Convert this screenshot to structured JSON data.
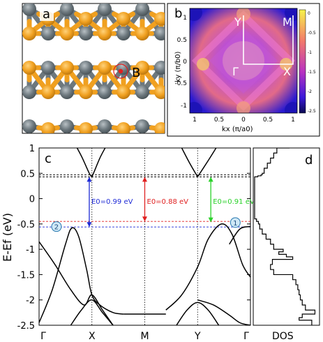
{
  "panels": {
    "a": {
      "label": "a",
      "site_label": "B"
    },
    "b": {
      "label": "b",
      "xlabel": "kx (π/a0)",
      "ylabel": "ky (π/b0)",
      "x_ticks": [
        "1",
        "0.5",
        "0",
        "0.5",
        "1"
      ],
      "y_ticks": [
        "1",
        "0.5",
        "0",
        "-0.5",
        "-1"
      ],
      "colorbar_ticks": [
        "0",
        "-0.5",
        "-1",
        "-1.5",
        "-2",
        "-2.5"
      ],
      "points": {
        "Y": "Y",
        "M": "M",
        "G": "Γ",
        "X": "X"
      }
    },
    "c": {
      "label": "c"
    },
    "d": {
      "label": "d",
      "xlabel": "DOS"
    }
  },
  "chart_data": {
    "type": "line",
    "title": "",
    "ylabel": "E-Ef (eV)",
    "ylim": [
      -2.5,
      1
    ],
    "y_ticks": [
      "1",
      "0.5",
      "0",
      "-0.5",
      "-1",
      "-1.5",
      "-2",
      "-2.5"
    ],
    "k_path": [
      "Γ",
      "X",
      "M",
      "Y",
      "Γ"
    ],
    "k_positions": [
      0,
      1,
      2,
      3,
      4
    ],
    "gap_annotations": [
      {
        "text": "E0=0.99 eV",
        "color": "#1f2bd6",
        "k": 0.95,
        "from": -0.56,
        "to": 0.43
      },
      {
        "text": "E0=0.88 eV",
        "color": "#e02020",
        "k": 2.0,
        "from": -0.45,
        "to": 0.43
      },
      {
        "text": "E0=0.91 eV",
        "color": "#2ad12a",
        "k": 3.25,
        "from": -0.47,
        "to": 0.43
      }
    ],
    "markers": [
      {
        "text": "2",
        "k": 0.62,
        "e": -0.58
      },
      {
        "text": "1",
        "k": 3.45,
        "e": -0.5
      }
    ],
    "reference_lines": {
      "cbm_black": [
        0.43,
        0.47
      ],
      "vbm_red": -0.45,
      "vbm_blue": -0.56
    },
    "bands": {
      "conduction": [
        {
          "k": [
            0.72,
            0.82,
            0.95,
            1.0
          ],
          "e": [
            1.0,
            0.8,
            0.5,
            0.43
          ]
        },
        {
          "k": [
            1.0,
            1.05,
            1.15,
            1.25
          ],
          "e": [
            0.43,
            0.55,
            0.8,
            1.0
          ]
        },
        {
          "k": [
            2.7,
            2.85,
            3.0
          ],
          "e": [
            1.0,
            0.7,
            0.43
          ]
        },
        {
          "k": [
            3.0,
            3.2,
            3.35
          ],
          "e": [
            0.43,
            0.75,
            1.0
          ]
        }
      ],
      "valence": [
        {
          "k": [
            0.0,
            0.25,
            0.5,
            0.62,
            0.75,
            0.9,
            1.0,
            1.15,
            1.4,
            1.6
          ],
          "e": [
            -2.45,
            -1.8,
            -0.9,
            -0.58,
            -0.75,
            -1.4,
            -1.9,
            -2.1,
            -2.25,
            -2.28
          ]
        },
        {
          "k": [
            1.6,
            2.0,
            2.4
          ],
          "e": [
            -2.28,
            -2.28,
            -2.28
          ]
        },
        {
          "k": [
            2.4,
            2.7,
            3.0,
            3.2,
            3.45,
            3.65,
            3.85,
            4.0
          ],
          "e": [
            -2.2,
            -1.9,
            -1.35,
            -0.8,
            -0.5,
            -0.7,
            -1.3,
            -1.55
          ]
        },
        {
          "k": [
            0.0,
            0.3,
            0.6,
            0.85,
            1.0,
            1.2,
            1.4
          ],
          "e": [
            -0.85,
            -1.3,
            -1.8,
            -2.1,
            -1.9,
            -2.2,
            -2.5
          ]
        },
        {
          "k": [
            0.6,
            0.8,
            1.0,
            1.2,
            1.4
          ],
          "e": [
            -2.5,
            -2.2,
            -2.0,
            -2.25,
            -2.5
          ]
        },
        {
          "k": [
            3.0,
            3.3,
            3.6,
            3.8,
            4.0
          ],
          "e": [
            -2.0,
            -2.1,
            -2.3,
            -2.45,
            -2.5
          ]
        },
        {
          "k": [
            2.6,
            2.8,
            3.0,
            3.2,
            3.4
          ],
          "e": [
            -2.5,
            -2.2,
            -2.05,
            -2.2,
            -2.5
          ]
        },
        {
          "k": [
            3.6,
            3.8,
            4.0
          ],
          "e": [
            -0.9,
            -0.6,
            -0.55
          ]
        }
      ]
    },
    "dos": {
      "e": [
        1.0,
        0.9,
        0.8,
        0.7,
        0.6,
        0.5,
        0.47,
        0.45,
        0.43,
        0.4,
        -0.4,
        -0.45,
        -0.5,
        -0.6,
        -0.7,
        -0.8,
        -0.9,
        -1.0,
        -1.05,
        -1.1,
        -1.15,
        -1.2,
        -1.3,
        -1.4,
        -1.5,
        -1.6,
        -1.7,
        -1.8,
        -1.9,
        -2.0,
        -2.1,
        -2.2,
        -2.28,
        -2.35,
        -2.4,
        -2.5
      ],
      "v": [
        0.55,
        0.35,
        0.3,
        0.25,
        0.2,
        0.15,
        0.12,
        0.1,
        0.05,
        0,
        0,
        0.03,
        0.06,
        0.08,
        0.12,
        0.18,
        0.25,
        0.3,
        0.45,
        0.38,
        0.5,
        0.6,
        0.28,
        0.25,
        0.3,
        0.6,
        0.65,
        0.68,
        0.7,
        0.72,
        0.75,
        0.8,
        0.95,
        0.75,
        0.7,
        0.9
      ]
    }
  }
}
